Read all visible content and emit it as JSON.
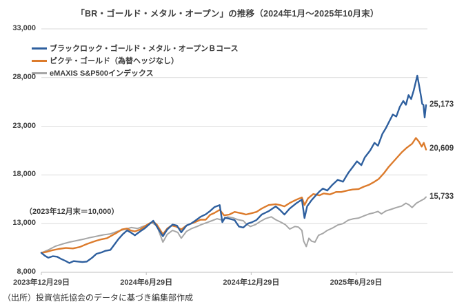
{
  "title": "「BR・ゴールド・メタル・オープン」の推移（2024年1月～2025年10月末）",
  "footer": "（出所）投資信託協会のデータに基づき編集部作成",
  "colors": {
    "blue": "#2e5f9e",
    "orange": "#dc7b2c",
    "gray": "#a6a6a6",
    "gridline": "#d9d9d9",
    "axis": "#bfbfbf",
    "text": "#404040"
  },
  "chart_data": {
    "type": "line",
    "title": "「BR・ゴールド・メタル・オープン」の推移（2024年1月～2025年10月末）",
    "annotation": "（2023年12月末＝10,000）",
    "grid": true,
    "legend_position": "top-left",
    "x_axis": {
      "unit": "months since 2023-12-29",
      "range_months": [
        0,
        22
      ],
      "tick_months": [
        0,
        6,
        12,
        18
      ],
      "tick_labels": [
        "2023年12月29日",
        "2024年6月29日",
        "2024年12月29日",
        "2025年6月29日"
      ]
    },
    "y_axis": {
      "min": 8000,
      "max": 33000,
      "step": 5000,
      "tick_labels": [
        "8,000",
        "13,000",
        "18,000",
        "23,000",
        "28,000",
        "33,000"
      ]
    },
    "series": [
      {
        "name": "ブラックロック・ゴールド・メタル・オープンＢコース",
        "color": "#2e5f9e",
        "stroke_width": 2.4,
        "end_label": "25,173",
        "final_value": 25173,
        "points": [
          [
            0,
            10000
          ],
          [
            0.2,
            9700
          ],
          [
            0.4,
            9500
          ],
          [
            0.65,
            9650
          ],
          [
            0.9,
            9600
          ],
          [
            1.1,
            9400
          ],
          [
            1.4,
            9150
          ],
          [
            1.6,
            8950
          ],
          [
            1.85,
            9150
          ],
          [
            2.1,
            9100
          ],
          [
            2.35,
            9050
          ],
          [
            2.6,
            9100
          ],
          [
            2.9,
            9500
          ],
          [
            3.15,
            9900
          ],
          [
            3.45,
            10050
          ],
          [
            3.65,
            10200
          ],
          [
            3.95,
            10300
          ],
          [
            4.2,
            10900
          ],
          [
            4.4,
            11400
          ],
          [
            4.65,
            11900
          ],
          [
            4.9,
            12300
          ],
          [
            5.1,
            12100
          ],
          [
            5.35,
            11800
          ],
          [
            5.65,
            12200
          ],
          [
            5.9,
            12500
          ],
          [
            6.15,
            12900
          ],
          [
            6.4,
            13300
          ],
          [
            6.6,
            12700
          ],
          [
            6.95,
            11700
          ],
          [
            7.2,
            12400
          ],
          [
            7.5,
            12900
          ],
          [
            7.75,
            12800
          ],
          [
            8.0,
            12100
          ],
          [
            8.3,
            12800
          ],
          [
            8.55,
            13000
          ],
          [
            8.8,
            13300
          ],
          [
            9.1,
            13700
          ],
          [
            9.4,
            13950
          ],
          [
            9.65,
            14300
          ],
          [
            9.9,
            14700
          ],
          [
            10.2,
            14900
          ],
          [
            10.35,
            13150
          ],
          [
            10.5,
            13600
          ],
          [
            10.75,
            13500
          ],
          [
            11.05,
            13360
          ],
          [
            11.3,
            12700
          ],
          [
            11.55,
            12600
          ],
          [
            11.8,
            13000
          ],
          [
            12.05,
            13150
          ],
          [
            12.3,
            13360
          ],
          [
            12.6,
            13930
          ],
          [
            13.0,
            14280
          ],
          [
            13.4,
            14770
          ],
          [
            13.65,
            14400
          ],
          [
            13.9,
            13930
          ],
          [
            14.2,
            14550
          ],
          [
            14.6,
            15120
          ],
          [
            14.9,
            15475
          ],
          [
            15.05,
            13570
          ],
          [
            15.2,
            14770
          ],
          [
            15.45,
            15400
          ],
          [
            15.7,
            15900
          ],
          [
            15.9,
            16300
          ],
          [
            16.1,
            16600
          ],
          [
            16.35,
            16400
          ],
          [
            16.65,
            17000
          ],
          [
            16.95,
            17500
          ],
          [
            17.25,
            17300
          ],
          [
            17.55,
            18200
          ],
          [
            17.8,
            18800
          ],
          [
            18.05,
            19400
          ],
          [
            18.3,
            19000
          ],
          [
            18.5,
            19800
          ],
          [
            18.8,
            20500
          ],
          [
            19.05,
            21300
          ],
          [
            19.25,
            21000
          ],
          [
            19.5,
            22200
          ],
          [
            19.7,
            22800
          ],
          [
            19.9,
            23500
          ],
          [
            20.1,
            24200
          ],
          [
            20.3,
            24000
          ],
          [
            20.5,
            25000
          ],
          [
            20.7,
            25600
          ],
          [
            20.85,
            25200
          ],
          [
            21.0,
            26200
          ],
          [
            21.15,
            25800
          ],
          [
            21.3,
            26700
          ],
          [
            21.5,
            28200
          ],
          [
            21.6,
            27200
          ],
          [
            21.7,
            26200
          ],
          [
            21.78,
            25300
          ],
          [
            21.85,
            25200
          ],
          [
            21.92,
            23900
          ],
          [
            22,
            25173
          ]
        ]
      },
      {
        "name": "ピクテ・ゴールド（為替ヘッジなし）",
        "color": "#dc7b2c",
        "stroke_width": 2.4,
        "end_label": "20,609",
        "final_value": 20609,
        "points": [
          [
            0,
            10000
          ],
          [
            0.3,
            10100
          ],
          [
            0.6,
            10250
          ],
          [
            1.0,
            10400
          ],
          [
            1.4,
            10500
          ],
          [
            1.8,
            10450
          ],
          [
            2.2,
            10600
          ],
          [
            2.6,
            10900
          ],
          [
            2.9,
            11100
          ],
          [
            3.15,
            11250
          ],
          [
            3.45,
            11400
          ],
          [
            3.75,
            11500
          ],
          [
            4.05,
            11800
          ],
          [
            4.35,
            12100
          ],
          [
            4.6,
            12400
          ],
          [
            4.9,
            12500
          ],
          [
            5.1,
            12300
          ],
          [
            5.35,
            12200
          ],
          [
            5.65,
            12400
          ],
          [
            5.9,
            12700
          ],
          [
            6.15,
            13000
          ],
          [
            6.4,
            13200
          ],
          [
            6.6,
            12900
          ],
          [
            6.95,
            11900
          ],
          [
            7.2,
            12500
          ],
          [
            7.45,
            12800
          ],
          [
            7.7,
            12700
          ],
          [
            8.0,
            12400
          ],
          [
            8.3,
            12800
          ],
          [
            8.55,
            13000
          ],
          [
            8.85,
            13200
          ],
          [
            9.1,
            13400
          ],
          [
            9.4,
            13400
          ],
          [
            9.65,
            13900
          ],
          [
            9.9,
            14100
          ],
          [
            10.2,
            14420
          ],
          [
            10.45,
            13850
          ],
          [
            10.75,
            13930
          ],
          [
            11.05,
            14200
          ],
          [
            11.45,
            14060
          ],
          [
            11.7,
            13930
          ],
          [
            12.0,
            14060
          ],
          [
            12.3,
            14200
          ],
          [
            12.6,
            14550
          ],
          [
            13.0,
            14910
          ],
          [
            13.4,
            15000
          ],
          [
            13.65,
            14910
          ],
          [
            13.9,
            14770
          ],
          [
            14.2,
            15120
          ],
          [
            14.6,
            15475
          ],
          [
            14.9,
            15690
          ],
          [
            15.05,
            14910
          ],
          [
            15.25,
            15600
          ],
          [
            15.55,
            16040
          ],
          [
            15.9,
            15900
          ],
          [
            16.15,
            16100
          ],
          [
            16.5,
            16000
          ],
          [
            16.85,
            16250
          ],
          [
            17.15,
            16250
          ],
          [
            17.5,
            16400
          ],
          [
            17.8,
            16500
          ],
          [
            18.15,
            16550
          ],
          [
            18.45,
            16800
          ],
          [
            18.75,
            17000
          ],
          [
            19.05,
            17300
          ],
          [
            19.3,
            17600
          ],
          [
            19.6,
            18200
          ],
          [
            19.85,
            18800
          ],
          [
            20.1,
            19300
          ],
          [
            20.4,
            19900
          ],
          [
            20.6,
            20300
          ],
          [
            20.9,
            20800
          ],
          [
            21.2,
            21200
          ],
          [
            21.42,
            21800
          ],
          [
            21.6,
            21400
          ],
          [
            21.75,
            20900
          ],
          [
            21.87,
            21300
          ],
          [
            22,
            20609
          ]
        ]
      },
      {
        "name": "eMAXIS S&P500インデックス",
        "color": "#a6a6a6",
        "stroke_width": 2.0,
        "end_label": "15,733",
        "final_value": 15733,
        "points": [
          [
            0,
            10000
          ],
          [
            0.4,
            10300
          ],
          [
            0.8,
            10680
          ],
          [
            1.2,
            10900
          ],
          [
            1.6,
            11100
          ],
          [
            2.0,
            11250
          ],
          [
            2.4,
            11400
          ],
          [
            2.75,
            11550
          ],
          [
            3.15,
            11700
          ],
          [
            3.55,
            11850
          ],
          [
            3.95,
            11950
          ],
          [
            4.35,
            12200
          ],
          [
            4.75,
            12400
          ],
          [
            5.15,
            12600
          ],
          [
            5.5,
            12500
          ],
          [
            5.8,
            12700
          ],
          [
            6.1,
            12900
          ],
          [
            6.3,
            13100
          ],
          [
            6.6,
            12800
          ],
          [
            6.95,
            11100
          ],
          [
            7.2,
            11900
          ],
          [
            7.5,
            12300
          ],
          [
            7.8,
            12100
          ],
          [
            8.0,
            11500
          ],
          [
            8.3,
            12200
          ],
          [
            8.6,
            12500
          ],
          [
            8.9,
            12700
          ],
          [
            9.15,
            12900
          ],
          [
            9.45,
            13100
          ],
          [
            9.75,
            13300
          ],
          [
            10.05,
            13500
          ],
          [
            10.35,
            13360
          ],
          [
            10.65,
            13700
          ],
          [
            10.95,
            13600
          ],
          [
            11.25,
            13400
          ],
          [
            11.55,
            13300
          ],
          [
            11.7,
            13000
          ],
          [
            11.95,
            12700
          ],
          [
            12.25,
            12900
          ],
          [
            12.5,
            13200
          ],
          [
            12.8,
            13500
          ],
          [
            13.15,
            13700
          ],
          [
            13.4,
            13400
          ],
          [
            13.7,
            13150
          ],
          [
            13.95,
            12900
          ],
          [
            14.2,
            12440
          ],
          [
            14.5,
            12700
          ],
          [
            14.7,
            12650
          ],
          [
            14.9,
            12300
          ],
          [
            15.0,
            11200
          ],
          [
            15.15,
            10650
          ],
          [
            15.3,
            11500
          ],
          [
            15.45,
            11200
          ],
          [
            15.65,
            11100
          ],
          [
            15.85,
            11800
          ],
          [
            16.1,
            12000
          ],
          [
            16.35,
            12300
          ],
          [
            16.65,
            12550
          ],
          [
            16.95,
            12860
          ],
          [
            17.25,
            13000
          ],
          [
            17.55,
            13350
          ],
          [
            17.85,
            13500
          ],
          [
            18.15,
            13570
          ],
          [
            18.45,
            13800
          ],
          [
            18.75,
            14000
          ],
          [
            19.0,
            14100
          ],
          [
            19.25,
            14250
          ],
          [
            19.45,
            14000
          ],
          [
            19.7,
            14300
          ],
          [
            20.05,
            14500
          ],
          [
            20.3,
            14650
          ],
          [
            20.6,
            14800
          ],
          [
            20.85,
            15100
          ],
          [
            21.05,
            14900
          ],
          [
            21.2,
            14650
          ],
          [
            21.45,
            15100
          ],
          [
            21.7,
            15350
          ],
          [
            21.9,
            15550
          ],
          [
            22,
            15733
          ]
        ]
      }
    ]
  }
}
